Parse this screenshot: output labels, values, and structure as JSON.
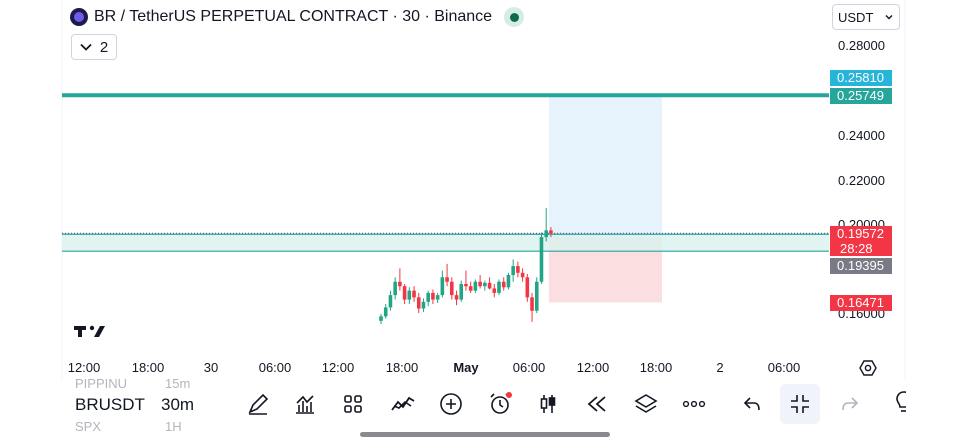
{
  "header": {
    "title": "BR / TetherUS PERPETUAL CONTRACT · 30 · Binance",
    "indicator_toggle_count": "2",
    "currency_select": "USDT"
  },
  "price_axis": {
    "ticks": [
      "0.28000",
      "0.24000",
      "0.22000",
      "0.20000",
      "0.16000"
    ],
    "labels": {
      "upper_line": "0.25810",
      "target_line": "0.25749",
      "last_price": "0.19572",
      "countdown": "28:28",
      "entry_line": "0.19395",
      "stop_line": "0.16471"
    }
  },
  "time_axis": {
    "ticks": [
      "12:00",
      "18:00",
      "30",
      "06:00",
      "12:00",
      "18:00",
      "May",
      "06:00",
      "12:00",
      "18:00",
      "2",
      "06:00"
    ]
  },
  "chart_data": {
    "type": "candlestick",
    "symbol": "BR / TetherUS PERPETUAL CONTRACT",
    "interval": "30",
    "exchange": "Binance",
    "price_range": [
      0.153,
      0.286
    ],
    "horizontal_lines": [
      0.2581,
      0.25749,
      0.19572,
      0.19395,
      0.16471
    ],
    "position": {
      "entry": 0.19395,
      "target": 0.25749,
      "stop": 0.16471
    },
    "last_price": 0.19572,
    "candles": [
      [
        0.1565,
        0.1595,
        0.155,
        0.1585
      ],
      [
        0.1585,
        0.164,
        0.1575,
        0.1625
      ],
      [
        0.1625,
        0.17,
        0.161,
        0.168
      ],
      [
        0.168,
        0.176,
        0.166,
        0.174
      ],
      [
        0.174,
        0.18,
        0.17,
        0.172
      ],
      [
        0.172,
        0.173,
        0.164,
        0.166
      ],
      [
        0.166,
        0.1715,
        0.164,
        0.17
      ],
      [
        0.17,
        0.172,
        0.165,
        0.167
      ],
      [
        0.167,
        0.169,
        0.16,
        0.162
      ],
      [
        0.162,
        0.1665,
        0.1605,
        0.165
      ],
      [
        0.165,
        0.17,
        0.163,
        0.169
      ],
      [
        0.169,
        0.1705,
        0.164,
        0.166
      ],
      [
        0.166,
        0.169,
        0.1645,
        0.168
      ],
      [
        0.168,
        0.179,
        0.167,
        0.176
      ],
      [
        0.176,
        0.182,
        0.172,
        0.174
      ],
      [
        0.174,
        0.176,
        0.166,
        0.168
      ],
      [
        0.168,
        0.17,
        0.1635,
        0.166
      ],
      [
        0.166,
        0.1745,
        0.165,
        0.173
      ],
      [
        0.173,
        0.179,
        0.17,
        0.172
      ],
      [
        0.172,
        0.174,
        0.169,
        0.17
      ],
      [
        0.17,
        0.175,
        0.169,
        0.174
      ],
      [
        0.174,
        0.177,
        0.171,
        0.172
      ],
      [
        0.172,
        0.1745,
        0.17,
        0.1735
      ],
      [
        0.1735,
        0.176,
        0.1705,
        0.171
      ],
      [
        0.171,
        0.173,
        0.167,
        0.169
      ],
      [
        0.169,
        0.175,
        0.168,
        0.174
      ],
      [
        0.174,
        0.176,
        0.17,
        0.1715
      ],
      [
        0.1715,
        0.178,
        0.1705,
        0.177
      ],
      [
        0.177,
        0.184,
        0.174,
        0.181
      ],
      [
        0.181,
        0.183,
        0.176,
        0.178
      ],
      [
        0.178,
        0.18,
        0.174,
        0.176
      ],
      [
        0.176,
        0.1775,
        0.165,
        0.167
      ],
      [
        0.167,
        0.169,
        0.156,
        0.161
      ],
      [
        0.161,
        0.176,
        0.16,
        0.174
      ],
      [
        0.174,
        0.196,
        0.173,
        0.194
      ],
      [
        0.194,
        0.207,
        0.192,
        0.197
      ],
      [
        0.197,
        0.1985,
        0.194,
        0.1957
      ]
    ]
  },
  "toolbar": {
    "symbol": "BRUSDT",
    "interval": "30m",
    "ghost_symbol_top": "PIPPINU",
    "ghost_interval_top": "15m",
    "ghost_symbol_bottom": "SPX",
    "ghost_interval_bottom": "1H",
    "tools": [
      "pencil-icon",
      "indicators-icon",
      "grid-icon",
      "patterns-icon",
      "plus-icon",
      "alarm-icon",
      "candles-icon",
      "replay-icon",
      "layers-icon",
      "more-icon",
      "undo-icon",
      "minimize-icon",
      "redo-icon",
      "lightbulb-icon"
    ]
  },
  "colors": {
    "up": "#22a586",
    "down": "#f23645",
    "target_line": "#26a69a",
    "upper_label": "#26b5d8",
    "entry_label": "#787b86",
    "stop_label": "#f23645",
    "position_profit": "#e3f1fb",
    "position_loss": "#fadadd",
    "entry_zone": "#d9f1ef"
  }
}
